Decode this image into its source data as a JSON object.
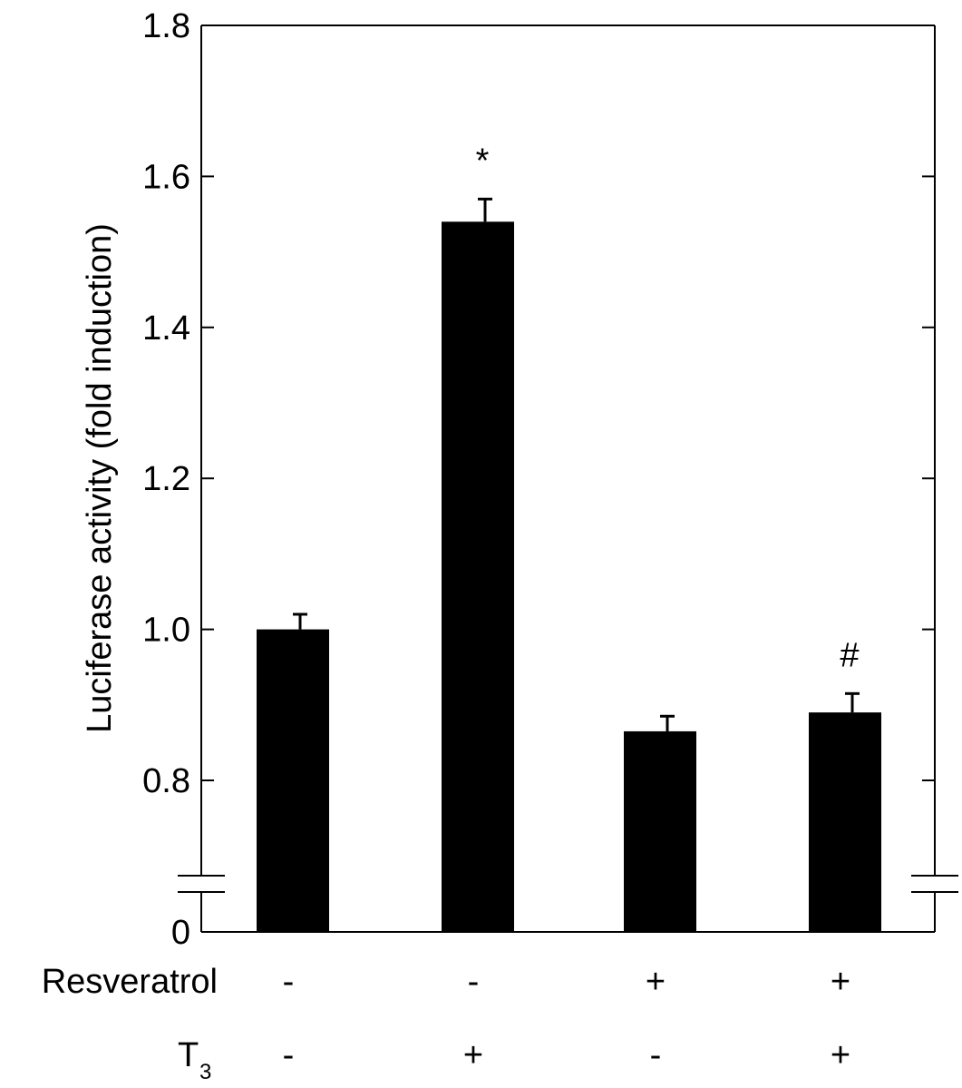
{
  "chart_data": {
    "type": "bar",
    "ylabel": "Luciferase activity (fold induction)",
    "ylim": [
      0.7,
      1.8
    ],
    "axis_break": true,
    "baseline_label": "0",
    "yticks": [
      "0.8",
      "1.0",
      "1.2",
      "1.4",
      "1.6",
      "1.8"
    ],
    "bars": [
      {
        "value": 1.0,
        "error": 0.02,
        "annotation": ""
      },
      {
        "value": 1.54,
        "error": 0.03,
        "annotation": "*"
      },
      {
        "value": 0.865,
        "error": 0.02,
        "annotation": ""
      },
      {
        "value": 0.89,
        "error": 0.025,
        "annotation": "#"
      }
    ],
    "conditions": [
      {
        "label": "Resveratrol",
        "values": [
          "-",
          "-",
          "+",
          "+"
        ]
      },
      {
        "label": "T",
        "subscript": "3",
        "values": [
          "-",
          "+",
          "-",
          "+"
        ]
      }
    ],
    "bar_color": "#000000",
    "grid": false
  }
}
